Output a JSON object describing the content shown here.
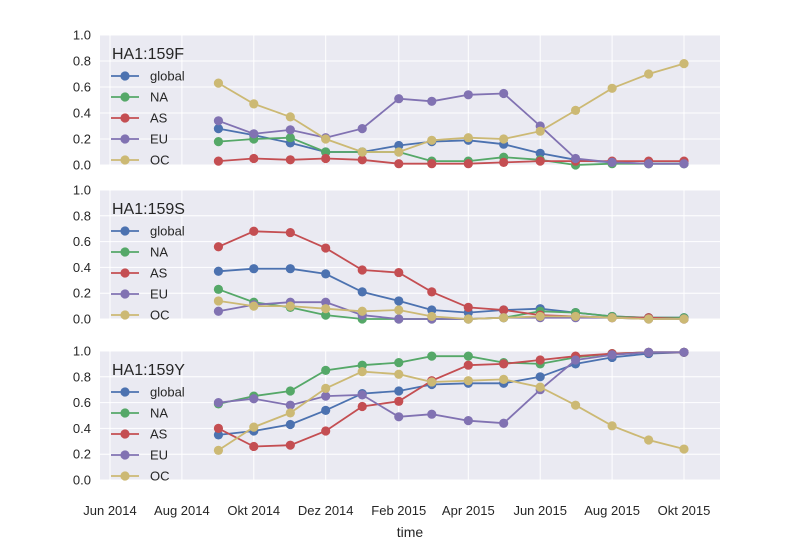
{
  "chart_data": {
    "type": "line",
    "xlabel": "time",
    "x_tick_labels": [
      "Jun 2014",
      "Aug 2014",
      "Okt 2014",
      "Dez 2014",
      "Feb 2015",
      "Apr 2015",
      "Jun 2015",
      "Aug 2015",
      "Okt 2015"
    ],
    "y_tick_labels": [
      "0.0",
      "0.2",
      "0.4",
      "0.6",
      "0.8",
      "1.0"
    ],
    "ylim": [
      0,
      1
    ],
    "grid": true,
    "legend_placement": "top-left",
    "x": [
      "2014-09-01",
      "2014-10-01",
      "2014-11-01",
      "2014-12-01",
      "2015-01-01",
      "2015-02-01",
      "2015-03-01",
      "2015-04-01",
      "2015-05-01",
      "2015-06-01",
      "2015-07-01",
      "2015-08-01",
      "2015-09-01",
      "2015-10-01"
    ],
    "colors": {
      "global": "#4c72b0",
      "NA": "#55a868",
      "AS": "#c44e52",
      "EU": "#8172b2",
      "OC": "#ccb974"
    },
    "panels": [
      {
        "title": "HA1:159F",
        "series": [
          {
            "name": "global",
            "values": [
              0.28,
              0.23,
              0.17,
              0.1,
              0.1,
              0.15,
              0.18,
              0.19,
              0.16,
              0.09,
              0.04,
              0.02,
              0.01,
              0.01
            ]
          },
          {
            "name": "NA",
            "values": [
              0.18,
              0.2,
              0.21,
              0.1,
              0.1,
              0.1,
              0.03,
              0.03,
              0.06,
              0.04,
              0.0,
              0.01,
              0.01,
              0.01
            ]
          },
          {
            "name": "AS",
            "values": [
              0.03,
              0.05,
              0.04,
              0.05,
              0.04,
              0.01,
              0.01,
              0.01,
              0.02,
              0.03,
              0.03,
              0.03,
              0.03,
              0.03
            ]
          },
          {
            "name": "EU",
            "values": [
              0.34,
              0.24,
              0.27,
              0.21,
              0.28,
              0.51,
              0.49,
              0.54,
              0.55,
              0.3,
              0.05,
              0.02,
              0.01,
              0.01
            ]
          },
          {
            "name": "OC",
            "values": [
              0.63,
              0.47,
              0.37,
              0.2,
              0.1,
              0.1,
              0.19,
              0.21,
              0.2,
              0.26,
              0.42,
              0.59,
              0.7,
              0.78
            ]
          }
        ]
      },
      {
        "title": "HA1:159S",
        "series": [
          {
            "name": "global",
            "values": [
              0.37,
              0.39,
              0.39,
              0.35,
              0.21,
              0.14,
              0.07,
              0.05,
              0.07,
              0.08,
              0.05,
              0.02,
              0.01,
              0.01
            ]
          },
          {
            "name": "NA",
            "values": [
              0.23,
              0.13,
              0.09,
              0.03,
              0.0,
              0.0,
              0.0,
              0.0,
              0.01,
              0.06,
              0.05,
              0.02,
              0.01,
              0.01
            ]
          },
          {
            "name": "AS",
            "values": [
              0.56,
              0.68,
              0.67,
              0.55,
              0.38,
              0.36,
              0.21,
              0.09,
              0.07,
              0.03,
              0.02,
              0.01,
              0.01,
              0.0
            ]
          },
          {
            "name": "EU",
            "values": [
              0.06,
              0.11,
              0.13,
              0.13,
              0.03,
              0.0,
              0.0,
              0.0,
              0.01,
              0.01,
              0.01,
              0.01,
              0.0,
              0.0
            ]
          },
          {
            "name": "OC",
            "values": [
              0.14,
              0.1,
              0.1,
              0.08,
              0.06,
              0.07,
              0.02,
              0.0,
              0.01,
              0.02,
              0.02,
              0.01,
              0.0,
              0.0
            ]
          }
        ]
      },
      {
        "title": "HA1:159Y",
        "series": [
          {
            "name": "global",
            "values": [
              0.35,
              0.38,
              0.43,
              0.54,
              0.67,
              0.69,
              0.74,
              0.75,
              0.75,
              0.8,
              0.9,
              0.95,
              0.98,
              0.99
            ]
          },
          {
            "name": "NA",
            "values": [
              0.59,
              0.65,
              0.69,
              0.85,
              0.89,
              0.91,
              0.96,
              0.96,
              0.91,
              0.9,
              0.95,
              0.98,
              0.99,
              0.99
            ]
          },
          {
            "name": "AS",
            "values": [
              0.4,
              0.26,
              0.27,
              0.38,
              0.57,
              0.61,
              0.77,
              0.89,
              0.9,
              0.93,
              0.96,
              0.98,
              0.99,
              0.99
            ]
          },
          {
            "name": "EU",
            "values": [
              0.6,
              0.63,
              0.58,
              0.65,
              0.66,
              0.49,
              0.51,
              0.46,
              0.44,
              0.7,
              0.93,
              0.97,
              0.99,
              0.99
            ]
          },
          {
            "name": "OC",
            "values": [
              0.23,
              0.41,
              0.52,
              0.71,
              0.84,
              0.82,
              0.76,
              0.77,
              0.78,
              0.72,
              0.58,
              0.42,
              0.31,
              0.24
            ]
          }
        ]
      }
    ]
  }
}
